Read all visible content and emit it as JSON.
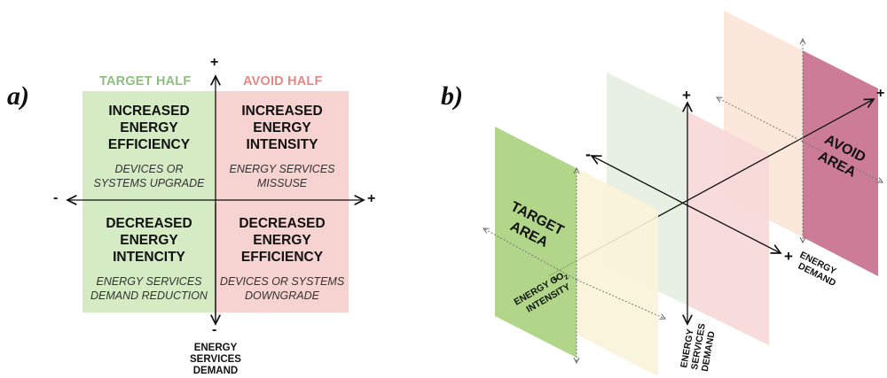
{
  "panel_a": {
    "label": "a)",
    "target_half": "TARGET HALF",
    "avoid_half": "AVOID HALF",
    "quadrants": {
      "top_left": {
        "title": [
          "INCREASED",
          "ENERGY",
          "EFFICIENCY"
        ],
        "subtitle": [
          "DEVICES OR",
          "SYSTEMS UPGRADE"
        ]
      },
      "top_right": {
        "title": [
          "INCREASED",
          "ENERGY",
          "INTENSITY"
        ],
        "subtitle": [
          "ENERGY SERVICES",
          "MISSUSE"
        ]
      },
      "bottom_left": {
        "title": [
          "DECREASED",
          "ENERGY",
          "INTENCITY"
        ],
        "subtitle": [
          "ENERGY SERVICES",
          "DEMAND REDUCTION"
        ]
      },
      "bottom_right": {
        "title": [
          "DECREASED",
          "ENERGY",
          "EFFICIENCY"
        ],
        "subtitle": [
          "DEVICES OR SYSTEMS",
          "DOWNGRADE"
        ]
      }
    },
    "signs": {
      "top": "+",
      "bottom": "-",
      "left": "-",
      "right": "+"
    },
    "y_axis_label": [
      "ENERGY",
      "SERVICES",
      "DEMAND"
    ]
  },
  "panel_b": {
    "label": "b)",
    "target_area": [
      "TARGET",
      "AREA"
    ],
    "avoid_area": [
      "AVOID",
      "AREA"
    ],
    "signs": {
      "vertical_top": "+",
      "left_axis": "-",
      "energy_demand": "+",
      "co2_end": "-",
      "top_right": "+"
    },
    "energy_demand_label": [
      "ENERGY",
      "DEMAND"
    ],
    "co2_label": [
      "ENERGY CO",
      "2",
      "INTENSITY"
    ],
    "services_label": [
      "ENERGY",
      "SERVICES",
      "DEMAND"
    ]
  },
  "colors": {
    "target_green": "#d4ebc4",
    "avoid_pink": "#f6d2d0",
    "target_label": "#8fbf80",
    "avoid_label": "#e08a88",
    "green_area": "#a9d27c",
    "pink_area": "#c86e8c",
    "pale_yellow": "#fbf3d8",
    "pale_peach": "#fbe5d6",
    "pale_green": "#e6efe1",
    "pale_pink": "#f8d9d9"
  }
}
